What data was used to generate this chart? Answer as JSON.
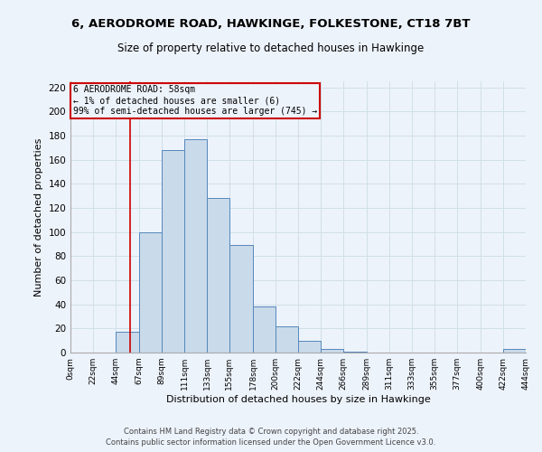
{
  "title_line1": "6, AERODROME ROAD, HAWKINGE, FOLKESTONE, CT18 7BT",
  "title_line2": "Size of property relative to detached houses in Hawkinge",
  "xlabel": "Distribution of detached houses by size in Hawkinge",
  "ylabel": "Number of detached properties",
  "bin_edges": [
    0,
    22,
    44,
    67,
    89,
    111,
    133,
    155,
    178,
    200,
    222,
    244,
    266,
    289,
    311,
    333,
    355,
    377,
    400,
    422,
    444
  ],
  "bin_labels": [
    "0sqm",
    "22sqm",
    "44sqm",
    "67sqm",
    "89sqm",
    "111sqm",
    "133sqm",
    "155sqm",
    "178sqm",
    "200sqm",
    "222sqm",
    "244sqm",
    "266sqm",
    "289sqm",
    "311sqm",
    "333sqm",
    "355sqm",
    "377sqm",
    "400sqm",
    "422sqm",
    "444sqm"
  ],
  "counts": [
    0,
    0,
    17,
    100,
    168,
    177,
    128,
    89,
    38,
    22,
    10,
    3,
    1,
    0,
    0,
    0,
    0,
    0,
    0,
    3
  ],
  "bar_facecolor": "#c9daea",
  "bar_edgecolor": "#5588bb",
  "grid_color": "#d0dfe8",
  "vline_x": 58,
  "vline_color": "#cc0000",
  "annotation_title": "6 AERODROME ROAD: 58sqm",
  "annotation_line1": "← 1% of detached houses are smaller (6)",
  "annotation_line2": "99% of semi-detached houses are larger (745) →",
  "annotation_box_edgecolor": "#cc0000",
  "ylim": [
    0,
    225
  ],
  "yticks": [
    0,
    20,
    40,
    60,
    80,
    100,
    120,
    140,
    160,
    180,
    200,
    220
  ],
  "footer_line1": "Contains HM Land Registry data © Crown copyright and database right 2025.",
  "footer_line2": "Contains public sector information licensed under the Open Government Licence v3.0.",
  "background_color": "#edf3fb"
}
